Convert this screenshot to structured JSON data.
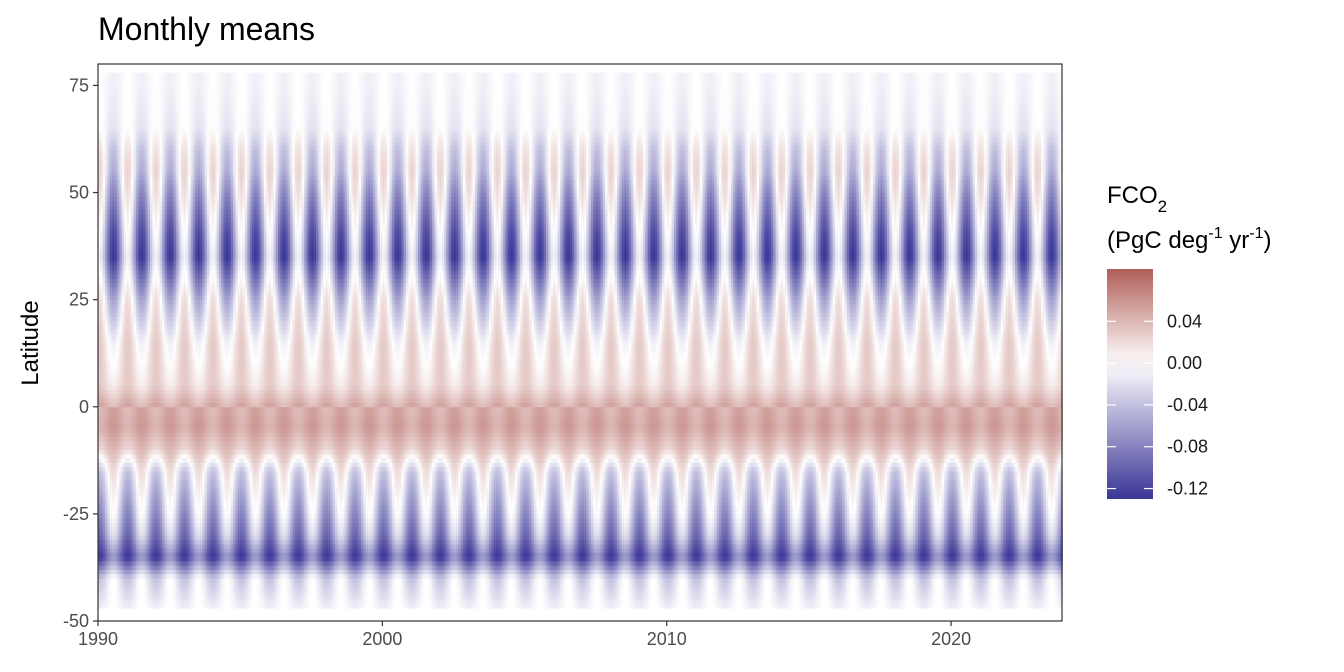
{
  "chart_data": {
    "type": "heatmap",
    "title": "Monthly means",
    "xlabel": "",
    "ylabel": "Latitude",
    "x_range": [
      1990,
      2023.9
    ],
    "y_range": [
      -50,
      80
    ],
    "x_ticks": [
      1990,
      2000,
      2010,
      2020
    ],
    "x_tick_labels": [
      "1990",
      "2000",
      "2010",
      "2020"
    ],
    "y_ticks": [
      -50,
      -25,
      0,
      25,
      50,
      75
    ],
    "y_tick_labels": [
      "-50",
      "-25",
      "0",
      "25",
      "50",
      "75"
    ],
    "data_lat_range": [
      -47,
      78
    ],
    "temporal_resolution": "monthly",
    "seasonal_period_years": 1,
    "latitude_bands": [
      {
        "lat": 75,
        "mean": -0.005,
        "seasonal_amp": 0.005
      },
      {
        "lat": 65,
        "mean": -0.008,
        "seasonal_amp": 0.01
      },
      {
        "lat": 60,
        "mean": -0.012,
        "seasonal_amp": 0.03
      },
      {
        "lat": 55,
        "mean": -0.015,
        "seasonal_amp": 0.04
      },
      {
        "lat": 50,
        "mean": -0.03,
        "seasonal_amp": 0.05
      },
      {
        "lat": 40,
        "mean": -0.06,
        "seasonal_amp": 0.06
      },
      {
        "lat": 35,
        "mean": -0.07,
        "seasonal_amp": 0.06
      },
      {
        "lat": 25,
        "mean": -0.02,
        "seasonal_amp": 0.04
      },
      {
        "lat": 15,
        "mean": 0.01,
        "seasonal_amp": 0.02
      },
      {
        "lat": 5,
        "mean": 0.02,
        "seasonal_amp": 0.01
      },
      {
        "lat": 0,
        "mean": 0.045,
        "seasonal_amp": 0.008
      },
      {
        "lat": -5,
        "mean": 0.05,
        "seasonal_amp": 0.008
      },
      {
        "lat": -10,
        "mean": 0.03,
        "seasonal_amp": 0.01
      },
      {
        "lat": -15,
        "mean": -0.01,
        "seasonal_amp": 0.03
      },
      {
        "lat": -25,
        "mean": -0.04,
        "seasonal_amp": 0.04
      },
      {
        "lat": -30,
        "mean": -0.06,
        "seasonal_amp": 0.04
      },
      {
        "lat": -35,
        "mean": -0.1,
        "seasonal_amp": 0.03
      },
      {
        "lat": -40,
        "mean": -0.02,
        "seasonal_amp": 0.02
      },
      {
        "lat": -47,
        "mean": -0.005,
        "seasonal_amp": 0.005
      }
    ],
    "legend": {
      "title_main": "FCO",
      "title_sub": "2",
      "units_prefix": "(PgC deg",
      "units_sup1": "-1",
      "units_mid": " yr",
      "units_sup2": "-1",
      "units_suffix": ")",
      "range": [
        -0.13,
        0.09
      ],
      "ticks": [
        0.04,
        0.0,
        -0.04,
        -0.08,
        -0.12
      ],
      "tick_labels": [
        "0.04",
        "0.00",
        "-0.04",
        "-0.08",
        "-0.12"
      ],
      "colors": {
        "low": "#3a3596",
        "mid": "#ffffff",
        "high": "#b05e58"
      }
    }
  }
}
